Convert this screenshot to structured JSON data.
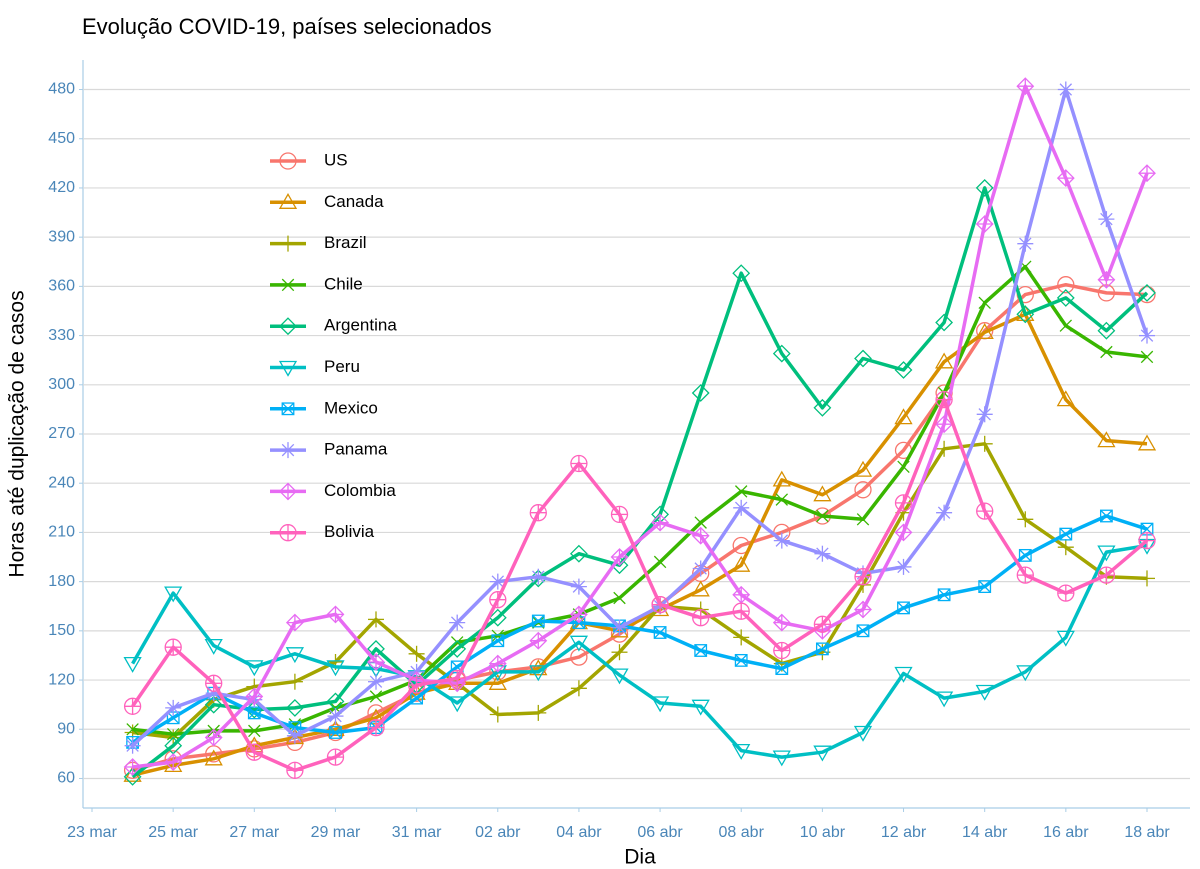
{
  "chart_data": {
    "type": "line",
    "title": "Evolução COVID-19, países selecionados",
    "x_label": "Dia",
    "y_label": "Horas até duplicação de casos",
    "categories": [
      "23 mar",
      null,
      "25 mar",
      null,
      "27 mar",
      null,
      "29 mar",
      null,
      "31 mar",
      null,
      "02 abr",
      null,
      "04 abr",
      null,
      "06 abr",
      null,
      "08 abr",
      null,
      "10 abr",
      null,
      "12 abr",
      null,
      "14 abr",
      null,
      "16 abr",
      null,
      "18 abr"
    ],
    "ylim": [
      42,
      498
    ],
    "yticks": [
      60,
      90,
      120,
      150,
      180,
      210,
      240,
      270,
      300,
      330,
      360,
      390,
      420,
      450,
      480
    ],
    "grid": true,
    "legend": "top-left",
    "series": [
      {
        "name": "US",
        "color": "#F8766D",
        "marker": "circle",
        "values": [
          null,
          65,
          72,
          75,
          78,
          82,
          88,
          100,
          112,
          120,
          125,
          128,
          134,
          148,
          166,
          185,
          202,
          210,
          220,
          236,
          260,
          295,
          333,
          355,
          361,
          356,
          355
        ]
      },
      {
        "name": "Canada",
        "color": "#D89000",
        "marker": "triangle",
        "values": [
          null,
          62,
          68,
          72,
          80,
          85,
          90,
          97,
          112,
          118,
          118,
          127,
          155,
          150,
          163,
          175,
          190,
          242,
          233,
          248,
          280,
          314,
          332,
          343,
          291,
          266,
          264
        ]
      },
      {
        "name": "Brazil",
        "color": "#A3A500",
        "marker": "plus",
        "values": [
          null,
          88,
          85,
          108,
          116,
          119,
          131,
          157,
          136,
          118,
          99,
          100,
          115,
          137,
          165,
          163,
          146,
          130,
          137,
          178,
          222,
          261,
          264,
          218,
          201,
          183,
          182
        ]
      },
      {
        "name": "Chile",
        "color": "#39B600",
        "marker": "cross",
        "values": [
          null,
          90,
          87,
          89,
          89,
          93,
          103,
          110,
          120,
          143,
          147,
          155,
          160,
          170,
          192,
          216,
          235,
          230,
          220,
          218,
          250,
          295,
          350,
          372,
          336,
          320,
          317
        ]
      },
      {
        "name": "Argentina",
        "color": "#00BF7D",
        "marker": "diamond",
        "values": [
          null,
          61,
          80,
          105,
          102,
          103,
          107,
          139,
          117,
          139,
          158,
          182,
          197,
          190,
          221,
          295,
          368,
          319,
          286,
          316,
          309,
          338,
          420,
          343,
          353,
          333,
          356
        ]
      },
      {
        "name": "Peru",
        "color": "#00BFC4",
        "marker": "triangle-down",
        "values": [
          null,
          130,
          173,
          141,
          128,
          136,
          128,
          127,
          122,
          106,
          125,
          125,
          143,
          123,
          106,
          104,
          77,
          73,
          76,
          88,
          124,
          109,
          113,
          125,
          146,
          198,
          202
        ]
      },
      {
        "name": "Mexico",
        "color": "#00B0F6",
        "marker": "square-cross",
        "values": [
          null,
          82,
          97,
          112,
          100,
          91,
          88,
          91,
          109,
          128,
          144,
          156,
          155,
          153,
          149,
          138,
          132,
          127,
          139,
          150,
          164,
          172,
          177,
          196,
          209,
          220,
          212
        ]
      },
      {
        "name": "Panama",
        "color": "#9590FF",
        "marker": "asterisk",
        "values": [
          null,
          80,
          103,
          112,
          108,
          86,
          98,
          119,
          125,
          155,
          180,
          183,
          177,
          152,
          165,
          188,
          225,
          205,
          197,
          185,
          189,
          222,
          282,
          386,
          480,
          401,
          330
        ]
      },
      {
        "name": "Colombia",
        "color": "#E76BF3",
        "marker": "diamond-plus",
        "values": [
          null,
          67,
          70,
          85,
          110,
          155,
          160,
          131,
          120,
          118,
          130,
          144,
          160,
          195,
          216,
          208,
          172,
          155,
          150,
          163,
          210,
          276,
          398,
          482,
          426,
          364,
          429
        ]
      },
      {
        "name": "Bolivia",
        "color": "#FF62BC",
        "marker": "circle-plus",
        "values": [
          null,
          104,
          140,
          118,
          76,
          65,
          73,
          91,
          117,
          121,
          169,
          222,
          252,
          221,
          166,
          158,
          162,
          138,
          154,
          183,
          228,
          291,
          223,
          184,
          173,
          184,
          205
        ]
      }
    ]
  }
}
